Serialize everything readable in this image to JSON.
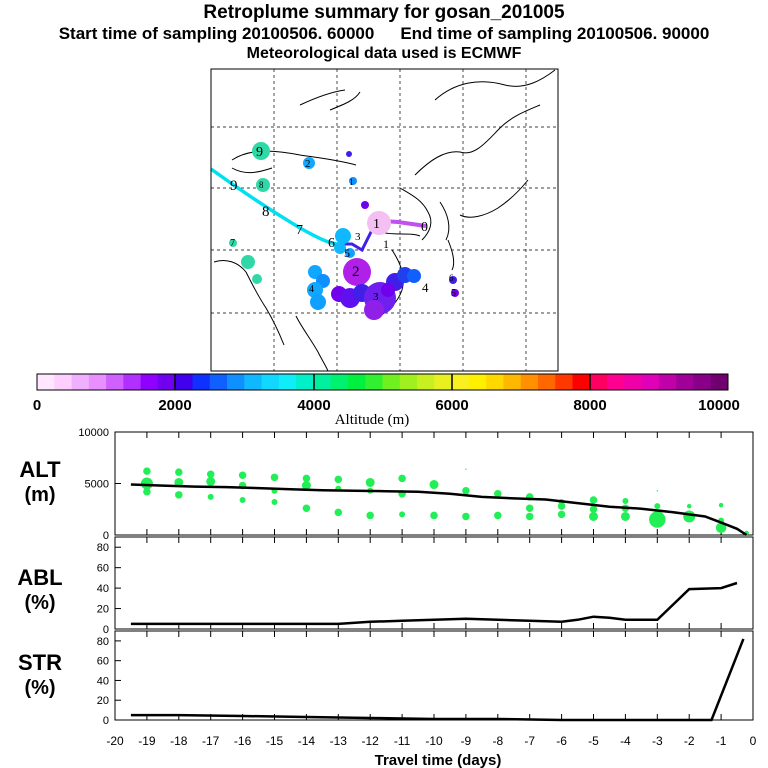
{
  "title": "Retroplume summary for gosan_201005",
  "start_label": "Start time of sampling 20100506. 60000",
  "end_label": "End time of sampling 20100506. 90000",
  "met_label": "Meteorological data used is ECMWF",
  "colors": {
    "marker": "#22ee55",
    "line": "#000000",
    "plume_low": "#00d8e8",
    "plume_mid": "#2266ff",
    "plume_high": "#7722dd"
  },
  "map": {
    "trajectory_labels": [
      "0",
      "1",
      "1",
      "2",
      "3",
      "4",
      "5",
      "6",
      "7",
      "8",
      "9"
    ],
    "cluster_labels": [
      "1",
      "2",
      "3",
      "4",
      "5",
      "6",
      "7",
      "8",
      "9"
    ]
  },
  "colorbar": {
    "ticks": [
      "0",
      "2000",
      "4000",
      "6000",
      "8000",
      "10000"
    ],
    "label": "Altitude (m)",
    "colors": [
      "#ffe8ff",
      "#ffd0ff",
      "#f0b0ff",
      "#e890ff",
      "#d060ff",
      "#b030ff",
      "#9000ff",
      "#7000ee",
      "#4000ee",
      "#1030ff",
      "#1060ff",
      "#1090ff",
      "#10b8ff",
      "#10d8ff",
      "#10ecf8",
      "#00f0c8",
      "#00f0a0",
      "#00f070",
      "#00f040",
      "#30f030",
      "#70f020",
      "#a0f020",
      "#c8f020",
      "#e8f020",
      "#f8f020",
      "#fff000",
      "#ffd800",
      "#ffb800",
      "#ff9000",
      "#ff6800",
      "#ff3800",
      "#ff0000",
      "#ff0060",
      "#ff0090",
      "#f000a8",
      "#e000b8",
      "#c000a8",
      "#a00098",
      "#880088",
      "#700070"
    ]
  },
  "chart_data": [
    {
      "type": "line",
      "name": "ALT",
      "ylabel": "ALT",
      "yunit": "(m)",
      "ylim": [
        0,
        10000
      ],
      "yticks": [
        0,
        5000,
        10000
      ],
      "x": [
        -19.5,
        -18.5,
        -17.5,
        -16.5,
        -15.5,
        -14.5,
        -13.5,
        -12.5,
        -11.5,
        -10.5,
        -9.5,
        -8.5,
        -7.5,
        -6.5,
        -5.5,
        -4.5,
        -3.5,
        -2.5,
        -1.5,
        -1.0,
        -0.5,
        -0.2
      ],
      "values": [
        4900,
        4800,
        4700,
        4650,
        4550,
        4450,
        4350,
        4300,
        4250,
        4200,
        4000,
        3700,
        3550,
        3450,
        3100,
        2750,
        2550,
        2200,
        1800,
        1200,
        600,
        0
      ],
      "scatter": [
        {
          "x": -19.0,
          "y": 6200,
          "s": 5
        },
        {
          "x": -19.0,
          "y": 5000,
          "s": 8
        },
        {
          "x": -19.0,
          "y": 4200,
          "s": 5
        },
        {
          "x": -18.0,
          "y": 6100,
          "s": 5
        },
        {
          "x": -18.0,
          "y": 5100,
          "s": 6
        },
        {
          "x": -18.0,
          "y": 3900,
          "s": 5
        },
        {
          "x": -17.0,
          "y": 5900,
          "s": 5
        },
        {
          "x": -17.0,
          "y": 5200,
          "s": 6
        },
        {
          "x": -17.0,
          "y": 3700,
          "s": 4
        },
        {
          "x": -16.0,
          "y": 5800,
          "s": 5
        },
        {
          "x": -16.0,
          "y": 4800,
          "s": 5
        },
        {
          "x": -16.0,
          "y": 3400,
          "s": 4
        },
        {
          "x": -15.0,
          "y": 5600,
          "s": 5
        },
        {
          "x": -15.0,
          "y": 4300,
          "s": 4
        },
        {
          "x": -15.0,
          "y": 3200,
          "s": 4
        },
        {
          "x": -14.0,
          "y": 5500,
          "s": 5
        },
        {
          "x": -14.0,
          "y": 4800,
          "s": 6
        },
        {
          "x": -14.0,
          "y": 2600,
          "s": 5
        },
        {
          "x": -13.0,
          "y": 5400,
          "s": 5
        },
        {
          "x": -13.0,
          "y": 4500,
          "s": 4
        },
        {
          "x": -13.0,
          "y": 2200,
          "s": 5
        },
        {
          "x": -12.0,
          "y": 5100,
          "s": 6
        },
        {
          "x": -12.0,
          "y": 4300,
          "s": 4
        },
        {
          "x": -12.0,
          "y": 1900,
          "s": 5
        },
        {
          "x": -11.0,
          "y": 5500,
          "s": 5
        },
        {
          "x": -11.0,
          "y": 4000,
          "s": 5
        },
        {
          "x": -11.0,
          "y": 2000,
          "s": 4
        },
        {
          "x": -10.0,
          "y": 4900,
          "s": 6
        },
        {
          "x": -10.0,
          "y": 1900,
          "s": 5
        },
        {
          "x": -9.0,
          "y": 6400,
          "s": 1
        },
        {
          "x": -9.0,
          "y": 4300,
          "s": 5
        },
        {
          "x": -9.0,
          "y": 1800,
          "s": 5
        },
        {
          "x": -8.0,
          "y": 4000,
          "s": 5
        },
        {
          "x": -8.0,
          "y": 1900,
          "s": 5
        },
        {
          "x": -7.0,
          "y": 3700,
          "s": 5
        },
        {
          "x": -7.0,
          "y": 2600,
          "s": 5
        },
        {
          "x": -7.0,
          "y": 1800,
          "s": 5
        },
        {
          "x": -6.0,
          "y": 3200,
          "s": 4
        },
        {
          "x": -6.0,
          "y": 2800,
          "s": 5
        },
        {
          "x": -6.0,
          "y": 2000,
          "s": 5
        },
        {
          "x": -5.0,
          "y": 3400,
          "s": 5
        },
        {
          "x": -5.0,
          "y": 2500,
          "s": 5
        },
        {
          "x": -5.0,
          "y": 1800,
          "s": 6
        },
        {
          "x": -4.0,
          "y": 3300,
          "s": 4
        },
        {
          "x": -4.0,
          "y": 2600,
          "s": 5
        },
        {
          "x": -4.0,
          "y": 1800,
          "s": 6
        },
        {
          "x": -3.0,
          "y": 4300,
          "s": 1
        },
        {
          "x": -3.0,
          "y": 2800,
          "s": 4
        },
        {
          "x": -3.0,
          "y": 1500,
          "s": 11
        },
        {
          "x": -2.0,
          "y": 2800,
          "s": 3
        },
        {
          "x": -2.0,
          "y": 1800,
          "s": 8
        },
        {
          "x": -1.0,
          "y": 2900,
          "s": 3
        },
        {
          "x": -1.0,
          "y": 1400,
          "s": 4
        },
        {
          "x": -1.0,
          "y": 700,
          "s": 7
        },
        {
          "x": -0.2,
          "y": 200,
          "s": 3
        }
      ]
    },
    {
      "type": "line",
      "name": "ABL",
      "ylabel": "ABL",
      "yunit": "(%)",
      "ylim": [
        0,
        90
      ],
      "yticks": [
        0,
        20,
        40,
        60,
        80
      ],
      "x": [
        -19.5,
        -18.0,
        -16.0,
        -14.0,
        -13.0,
        -12.0,
        -11.0,
        -10.0,
        -9.0,
        -8.0,
        -7.0,
        -6.0,
        -5.5,
        -5.0,
        -4.5,
        -4.0,
        -3.0,
        -2.0,
        -1.0,
        -0.5
      ],
      "values": [
        5,
        5,
        5,
        5,
        5,
        7,
        8,
        9,
        10,
        9,
        8,
        7,
        9,
        12,
        11,
        9,
        9,
        39,
        40,
        45
      ]
    },
    {
      "type": "line",
      "name": "STR",
      "ylabel": "STR",
      "yunit": "(%)",
      "ylim": [
        0,
        90
      ],
      "yticks": [
        0,
        20,
        40,
        60,
        80
      ],
      "x": [
        -19.5,
        -18.0,
        -16.0,
        -14.0,
        -12.0,
        -10.0,
        -8.0,
        -6.0,
        -4.0,
        -2.0,
        -1.3,
        -0.3
      ],
      "values": [
        5,
        5,
        4,
        3,
        2,
        1,
        1,
        0,
        0,
        0,
        0,
        82
      ]
    }
  ],
  "xaxis": {
    "label": "Travel time (days)",
    "ticks": [
      "-20",
      "-19",
      "-18",
      "-17",
      "-16",
      "-15",
      "-14",
      "-13",
      "-12",
      "-11",
      "-10",
      "-9",
      "-8",
      "-7",
      "-6",
      "-5",
      "-4",
      "-3",
      "-2",
      "-1",
      "0"
    ]
  }
}
